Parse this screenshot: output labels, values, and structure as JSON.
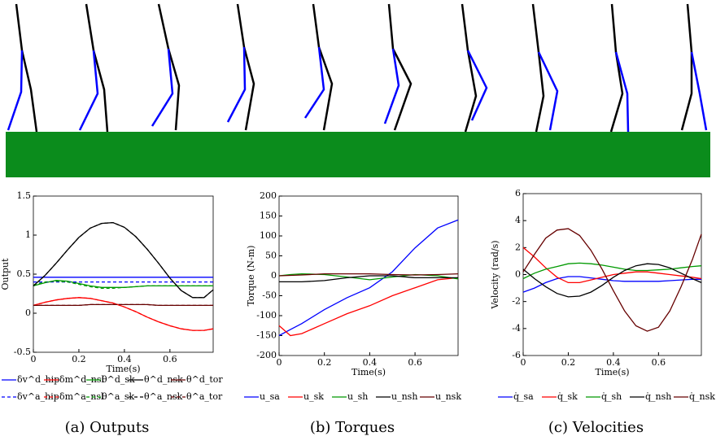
{
  "chart_data": [
    {
      "type": "line",
      "caption": "(a) Outputs",
      "xlabel": "Time(s)",
      "ylabel": "Output",
      "x": [
        0,
        0.05,
        0.1,
        0.15,
        0.2,
        0.25,
        0.3,
        0.35,
        0.4,
        0.45,
        0.5,
        0.55,
        0.6,
        0.65,
        0.7,
        0.75,
        0.79
      ],
      "xlim": [
        0,
        0.79
      ],
      "ylim": [
        -0.5,
        1.5
      ],
      "xticks": [
        0,
        0.2,
        0.4,
        0.6
      ],
      "yticks": [
        -0.5,
        0,
        0.5,
        1,
        1.5
      ],
      "series": [
        {
          "name": "δv^d_hip",
          "color": "#0000ff",
          "style": "solid",
          "values": [
            0.46,
            0.46,
            0.46,
            0.46,
            0.46,
            0.46,
            0.46,
            0.46,
            0.46,
            0.46,
            0.46,
            0.46,
            0.46,
            0.46,
            0.46,
            0.46,
            0.46
          ]
        },
        {
          "name": "δm^d_nsl",
          "color": "#ff0000",
          "style": "solid",
          "values": [
            0.1,
            0.14,
            0.17,
            0.19,
            0.2,
            0.19,
            0.16,
            0.13,
            0.08,
            0.02,
            -0.05,
            -0.11,
            -0.16,
            -0.2,
            -0.22,
            -0.22,
            -0.2
          ]
        },
        {
          "name": "θ^d_sk",
          "color": "#009900",
          "style": "solid",
          "values": [
            0.35,
            0.39,
            0.42,
            0.41,
            0.38,
            0.35,
            0.33,
            0.33,
            0.33,
            0.34,
            0.35,
            0.35,
            0.35,
            0.35,
            0.35,
            0.35,
            0.35
          ]
        },
        {
          "name": "θ^d_nsk",
          "color": "#000000",
          "style": "solid",
          "values": [
            0.35,
            0.48,
            0.64,
            0.81,
            0.97,
            1.09,
            1.15,
            1.16,
            1.1,
            0.98,
            0.82,
            0.64,
            0.45,
            0.29,
            0.2,
            0.2,
            0.3
          ]
        },
        {
          "name": "θ^d_tor",
          "color": "#660000",
          "style": "solid",
          "values": [
            0.1,
            0.1,
            0.1,
            0.1,
            0.1,
            0.11,
            0.11,
            0.11,
            0.11,
            0.11,
            0.11,
            0.1,
            0.1,
            0.1,
            0.1,
            0.1,
            0.1
          ]
        },
        {
          "name": "δv^a_hip",
          "color": "#0000ff",
          "style": "dashed",
          "values": [
            0.4,
            0.4,
            0.4,
            0.4,
            0.4,
            0.4,
            0.4,
            0.4,
            0.4,
            0.4,
            0.4,
            0.4,
            0.4,
            0.4,
            0.4,
            0.4,
            0.4
          ]
        },
        {
          "name": "δm^a_nsl",
          "color": "#ff0000",
          "style": "dashed",
          "values": [
            0.1,
            0.14,
            0.17,
            0.19,
            0.2,
            0.19,
            0.16,
            0.13,
            0.08,
            0.02,
            -0.05,
            -0.11,
            -0.16,
            -0.2,
            -0.22,
            -0.22,
            -0.2
          ]
        },
        {
          "name": "θ^a_sk",
          "color": "#009900",
          "style": "dashed",
          "values": [
            0.36,
            0.4,
            0.41,
            0.4,
            0.37,
            0.34,
            0.32,
            0.32,
            0.33,
            0.34,
            0.35,
            0.35,
            0.35,
            0.35,
            0.35,
            0.35,
            0.35
          ]
        },
        {
          "name": "θ^a_nsk",
          "color": "#000000",
          "style": "dashed",
          "values": [
            0.35,
            0.48,
            0.64,
            0.81,
            0.97,
            1.09,
            1.15,
            1.16,
            1.1,
            0.98,
            0.82,
            0.64,
            0.45,
            0.29,
            0.2,
            0.2,
            0.3
          ]
        },
        {
          "name": "θ^a_tor",
          "color": "#660000",
          "style": "dashed",
          "values": [
            0.1,
            0.1,
            0.1,
            0.1,
            0.1,
            0.11,
            0.11,
            0.11,
            0.11,
            0.11,
            0.11,
            0.1,
            0.1,
            0.1,
            0.1,
            0.1,
            0.1
          ]
        }
      ]
    },
    {
      "type": "line",
      "caption": "(b) Torques",
      "xlabel": "Time(s)",
      "ylabel": "Torque (N-m)",
      "x": [
        0,
        0.05,
        0.1,
        0.2,
        0.3,
        0.4,
        0.5,
        0.6,
        0.7,
        0.79
      ],
      "xlim": [
        0,
        0.79
      ],
      "ylim": [
        -200,
        200
      ],
      "xticks": [
        0,
        0.2,
        0.4,
        0.6
      ],
      "yticks": [
        -200,
        -150,
        -100,
        -50,
        0,
        50,
        100,
        150,
        200
      ],
      "series": [
        {
          "name": "u_sa",
          "color": "#0000ff",
          "style": "solid",
          "values": [
            -150,
            -135,
            -120,
            -85,
            -55,
            -30,
            10,
            70,
            120,
            140
          ]
        },
        {
          "name": "u_sk",
          "color": "#ff0000",
          "style": "solid",
          "values": [
            -125,
            -150,
            -145,
            -120,
            -95,
            -75,
            -50,
            -30,
            -10,
            -5
          ]
        },
        {
          "name": "u_sh",
          "color": "#009900",
          "style": "solid",
          "values": [
            0,
            3,
            5,
            3,
            -3,
            -10,
            -3,
            3,
            0,
            -8
          ]
        },
        {
          "name": "u_nsh",
          "color": "#000000",
          "style": "solid",
          "values": [
            -15,
            -15,
            -15,
            -12,
            -5,
            0,
            0,
            -5,
            -5,
            -5
          ]
        },
        {
          "name": "u_nsk",
          "color": "#660000",
          "style": "solid",
          "values": [
            0,
            1,
            2,
            5,
            5,
            5,
            3,
            2,
            3,
            5
          ]
        }
      ]
    },
    {
      "type": "line",
      "caption": "(c) Velocities",
      "xlabel": "Time(s)",
      "ylabel": "Velocity (rad/s)",
      "x": [
        0,
        0.05,
        0.1,
        0.15,
        0.2,
        0.25,
        0.3,
        0.35,
        0.4,
        0.45,
        0.5,
        0.55,
        0.6,
        0.65,
        0.7,
        0.75,
        0.79
      ],
      "xlim": [
        0,
        0.79
      ],
      "ylim": [
        -6,
        6
      ],
      "xticks": [
        0,
        0.2,
        0.4,
        0.6
      ],
      "yticks": [
        -6,
        -4,
        -2,
        0,
        2,
        4,
        6
      ],
      "series": [
        {
          "name": "q̇_sa",
          "color": "#0000ff",
          "style": "solid",
          "values": [
            -1.3,
            -1,
            -0.6,
            -0.3,
            -0.15,
            -0.15,
            -0.25,
            -0.35,
            -0.45,
            -0.5,
            -0.5,
            -0.5,
            -0.5,
            -0.45,
            -0.4,
            -0.35,
            -0.35
          ]
        },
        {
          "name": "q̇_sk",
          "color": "#ff0000",
          "style": "solid",
          "values": [
            2,
            1.3,
            0.5,
            -0.2,
            -0.6,
            -0.6,
            -0.4,
            -0.2,
            0,
            0.1,
            0.2,
            0.2,
            0.1,
            0,
            -0.1,
            -0.2,
            -0.3
          ]
        },
        {
          "name": "q̇_sh",
          "color": "#009900",
          "style": "solid",
          "values": [
            -0.3,
            0.1,
            0.4,
            0.6,
            0.8,
            0.85,
            0.8,
            0.7,
            0.55,
            0.4,
            0.3,
            0.3,
            0.35,
            0.4,
            0.5,
            0.6,
            0.65
          ]
        },
        {
          "name": "q̇_nsh",
          "color": "#000000",
          "style": "solid",
          "values": [
            0.4,
            -0.3,
            -0.9,
            -1.4,
            -1.65,
            -1.6,
            -1.3,
            -0.8,
            -0.2,
            0.3,
            0.65,
            0.8,
            0.75,
            0.5,
            0.1,
            -0.3,
            -0.6
          ]
        },
        {
          "name": "q̇_nsk",
          "color": "#660000",
          "style": "solid",
          "values": [
            0.2,
            1.5,
            2.7,
            3.3,
            3.4,
            2.9,
            1.8,
            0.4,
            -1.2,
            -2.7,
            -3.8,
            -4.2,
            -3.9,
            -2.7,
            -0.9,
            1.1,
            3
          ]
        }
      ]
    }
  ]
}
